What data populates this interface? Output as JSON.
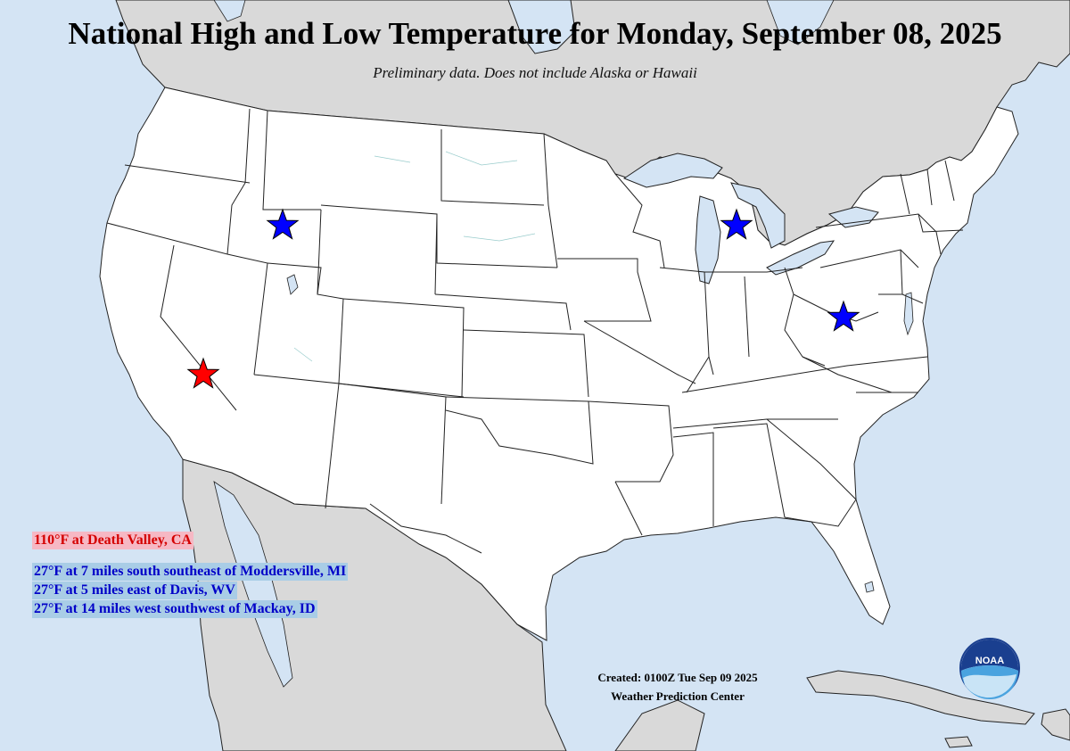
{
  "title": "National High and Low Temperature for Monday, September 08, 2025",
  "subtitle": "Preliminary data. Does not include Alaska or Hawaii",
  "high": {
    "text": "110°F at Death Valley, CA",
    "color": "#ff0000"
  },
  "lows": [
    {
      "text": "27°F at 7 miles south southeast of Moddersville, MI"
    },
    {
      "text": "27°F at 5 miles east of Davis, WV"
    },
    {
      "text": "27°F at 14 miles west southwest of Mackay, ID"
    }
  ],
  "low_color": "#0000ff",
  "created": "Created: 0100Z Tue Sep 09 2025",
  "center": "Weather Prediction Center",
  "logo": {
    "text": "NOAA",
    "icon": "noaa-logo-icon"
  },
  "colors": {
    "water": "#d4e4f4",
    "foreign_land": "#d9d9d9",
    "us_land": "#ffffff",
    "high_star": "#ff0000",
    "low_star": "#0000ff"
  }
}
